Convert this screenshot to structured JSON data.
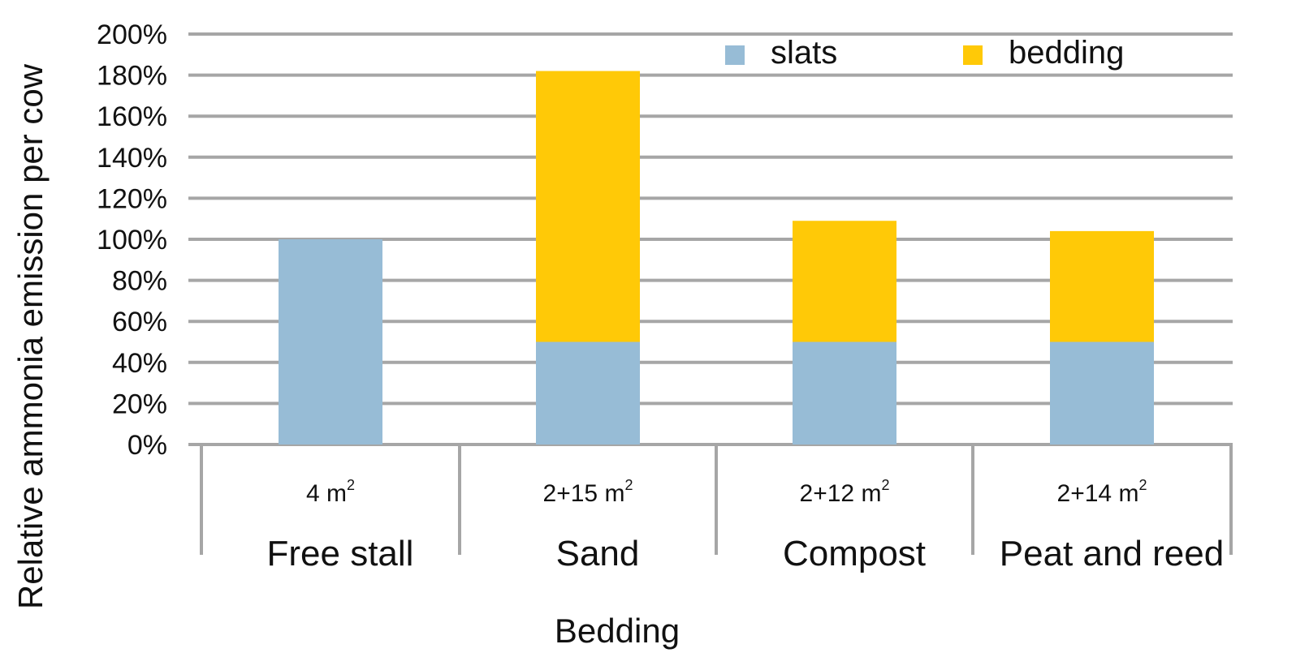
{
  "chart_data": {
    "type": "bar",
    "stacked": true,
    "categories": [
      "Free stall",
      "Sand",
      "Compost",
      "Peat and reed"
    ],
    "area_labels": [
      "4 m",
      "2+15 m",
      "2+12 m",
      "2+14 m"
    ],
    "area_unit_sup": "2",
    "series": [
      {
        "name": "slats",
        "color": "#97bcd6",
        "values": [
          100,
          50,
          50,
          50
        ]
      },
      {
        "name": "bedding",
        "color": "#ffc907",
        "values": [
          0,
          132,
          59,
          54
        ]
      }
    ],
    "xlabel": "Bedding",
    "ylabel": "Relative ammonia emission per cow",
    "ylim": [
      0,
      200
    ],
    "yticks": [
      0,
      20,
      40,
      60,
      80,
      100,
      120,
      140,
      160,
      180,
      200
    ],
    "ytick_suffix": "%",
    "grid": true,
    "legend_position": "top-right",
    "grid_color": "#a6a6a6"
  }
}
